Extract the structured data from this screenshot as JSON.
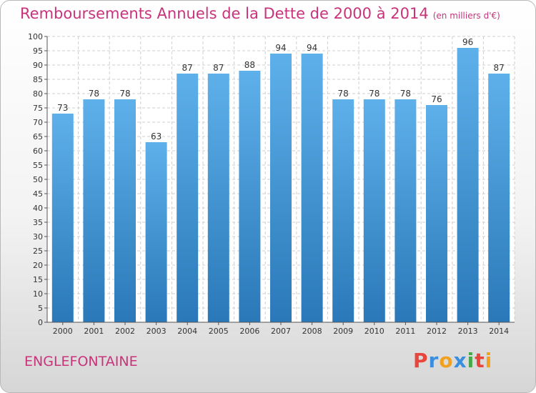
{
  "chart_data": {
    "type": "bar",
    "title": "Remboursements Annuels de la Dette de 2000 à 2014",
    "subtitle": "(en milliers d'€)",
    "categories": [
      "2000",
      "2001",
      "2002",
      "2003",
      "2004",
      "2005",
      "2006",
      "2007",
      "2008",
      "2009",
      "2010",
      "2011",
      "2012",
      "2013",
      "2014"
    ],
    "values": [
      73,
      78,
      78,
      63,
      87,
      87,
      88,
      94,
      94,
      78,
      78,
      78,
      76,
      96,
      87
    ],
    "ylim": [
      0,
      100
    ],
    "ytick_step": 5,
    "grid": true,
    "bar_color_top": "#5eb0ea",
    "bar_color_bottom": "#2a78b8"
  },
  "footer": {
    "commune": "ENGLEFONTAINE"
  },
  "logo": {
    "text": "Proxiti",
    "letters": [
      {
        "ch": "P",
        "color": "#e8453c"
      },
      {
        "ch": "r",
        "color": "#3b8ede"
      },
      {
        "ch": "o",
        "color": "#f2a11f"
      },
      {
        "ch": "x",
        "color": "#3b8ede"
      },
      {
        "ch": "i",
        "color": "#47a84b"
      },
      {
        "ch": "t",
        "color": "#e8453c"
      },
      {
        "ch": "i",
        "color": "#f2a11f"
      }
    ]
  }
}
